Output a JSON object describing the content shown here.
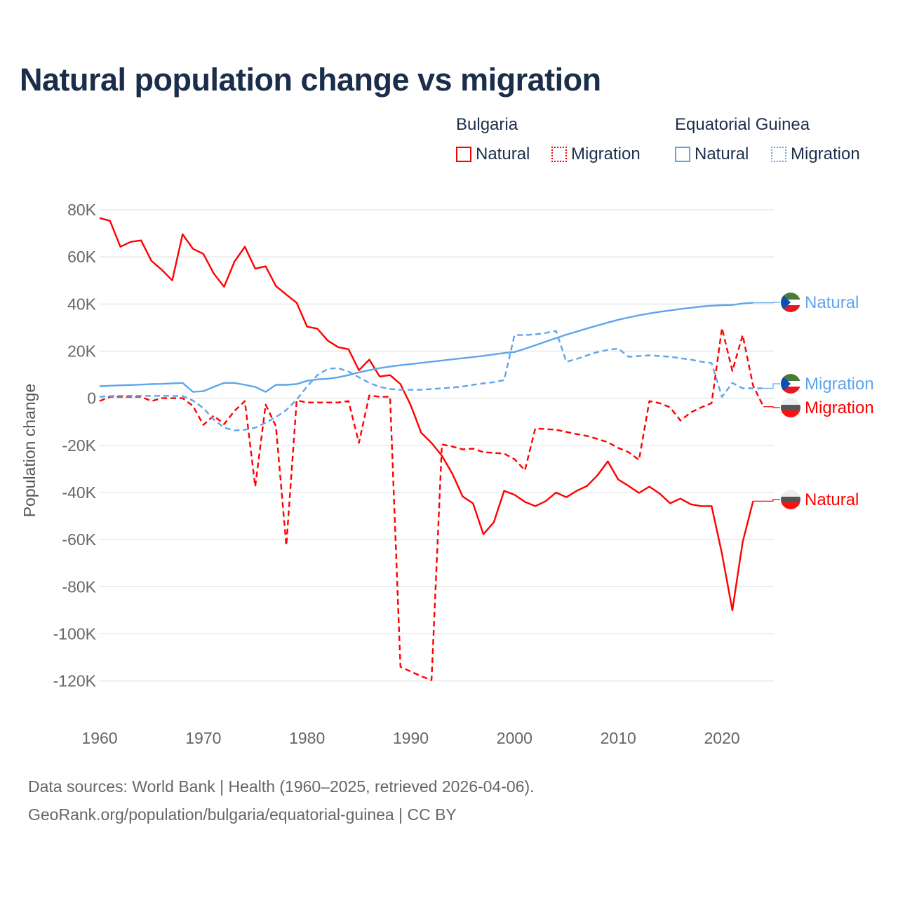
{
  "title": "Natural population change vs migration",
  "legend": {
    "groups": [
      {
        "name": "Bulgaria",
        "color": "#ff0000",
        "items": [
          "Natural",
          "Migration"
        ]
      },
      {
        "name": "Equatorial Guinea",
        "color": "#5ea5ec",
        "items": [
          "Natural",
          "Migration"
        ]
      }
    ]
  },
  "footer": {
    "line1": "Data sources: World Bank | Health (1960–2025, retrieved 2026-04-06).",
    "line2": "GeoRank.org/population/bulgaria/equatorial-guinea | CC BY"
  },
  "chart_data": {
    "type": "line",
    "title": "Natural population change vs migration",
    "xlabel": "",
    "ylabel": "Population change",
    "xlim": [
      1960,
      2025
    ],
    "ylim": [
      -120000,
      80000
    ],
    "xticks": [
      1960,
      1970,
      1980,
      1990,
      2000,
      2010,
      2020
    ],
    "xtick_labels": [
      "1960",
      "1970",
      "1980",
      "1990",
      "2000",
      "2010",
      "2020"
    ],
    "yticks": [
      80000,
      60000,
      40000,
      20000,
      0,
      -20000,
      -40000,
      -60000,
      -80000,
      -100000,
      -120000
    ],
    "ytick_labels": [
      "80K",
      "60K",
      "40K",
      "20K",
      "0",
      "-20K",
      "-40K",
      "-60K",
      "-80K",
      "-100K",
      "-120K"
    ],
    "grid": true,
    "legend_position": "top-right",
    "x_start": 1960,
    "series": [
      {
        "name": "Bulgaria Natural",
        "label": "Natural",
        "country": "Bulgaria",
        "color": "#ff0000",
        "dashed": false,
        "values": [
          76.5,
          75.3,
          64.3,
          66.4,
          67,
          58.3,
          54.5,
          50,
          69.6,
          63.4,
          61.3,
          53,
          47.3,
          58,
          64.3,
          55,
          56,
          47.6,
          44,
          40.5,
          30.4,
          29.5,
          24.4,
          21.7,
          20.8,
          11.9,
          16.4,
          9.2,
          9.8,
          6,
          -3,
          -14.6,
          -19,
          -24.4,
          -32,
          -41.7,
          -44.6,
          -57.7,
          -52.7,
          -39.3,
          -41,
          -44,
          -45.8,
          -43.7,
          -40,
          -42,
          -39.3,
          -37.2,
          -32.7,
          -26.8,
          -34.5,
          -37.2,
          -40.2,
          -37.5,
          -40.5,
          -44.6,
          -42.6,
          -45,
          -45.8,
          -45.8,
          -66,
          -90,
          -61,
          -43.7
        ]
      },
      {
        "name": "Bulgaria Migration",
        "label": "Migration",
        "country": "Bulgaria",
        "color": "#ff0000",
        "dashed": true,
        "values": [
          -1.2,
          0.6,
          0.6,
          0.6,
          0.6,
          -1.2,
          0,
          0,
          0,
          -3.3,
          -11.3,
          -7.4,
          -11,
          -5.4,
          -1.2,
          -37.5,
          -2.7,
          -11.9,
          -62.5,
          -0.9,
          -1.8,
          -1.8,
          -1.8,
          -1.8,
          -1.2,
          -19,
          1.2,
          0.6,
          0.6,
          -114,
          -116,
          -118,
          -119.6,
          -19.6,
          -20.5,
          -21.7,
          -21.4,
          -22.9,
          -23.2,
          -23.5,
          -25.9,
          -30.6,
          -12.8,
          -13.1,
          -13.4,
          -14.3,
          -15.2,
          -16,
          -17.3,
          -18.7,
          -21.1,
          -22.9,
          -26.2,
          -1.2,
          -2.1,
          -3.9,
          -9.5,
          -6,
          -3.9,
          -2.1,
          29.8,
          11.6,
          26.8,
          5.4,
          -3.6
        ]
      },
      {
        "name": "Equatorial Guinea Natural",
        "label": "Natural",
        "country": "Equatorial Guinea",
        "color": "#5ea5ec",
        "dashed": false,
        "values": [
          5.1,
          5.3,
          5.5,
          5.6,
          5.8,
          6,
          6.1,
          6.3,
          6.5,
          2.7,
          3,
          4.8,
          6.5,
          6.5,
          5.7,
          4.8,
          2.7,
          5.7,
          5.7,
          6,
          7.4,
          8,
          8.3,
          8.9,
          9.8,
          11,
          11.9,
          12.8,
          13.4,
          14,
          14.5,
          15,
          15.5,
          16,
          16.5,
          17,
          17.5,
          18,
          18.6,
          19.2,
          19.6,
          21,
          22.5,
          24,
          25.5,
          27,
          28.3,
          29.6,
          30.9,
          32.1,
          33.3,
          34.3,
          35.2,
          36,
          36.7,
          37.3,
          37.9,
          38.4,
          38.9,
          39.3,
          39.5,
          39.6,
          40.2,
          40.5
        ]
      },
      {
        "name": "Equatorial Guinea Migration",
        "label": "Migration",
        "country": "Equatorial Guinea",
        "color": "#5ea5ec",
        "dashed": true,
        "values": [
          0.6,
          0.9,
          1,
          1,
          1,
          1,
          1,
          1,
          0.9,
          -1,
          -4.2,
          -9,
          -12.5,
          -13.7,
          -13.4,
          -12.5,
          -10.4,
          -8,
          -5,
          -0.6,
          5,
          9.8,
          12.5,
          12.8,
          11.3,
          8.9,
          6.5,
          4.8,
          3.9,
          3.6,
          3.6,
          3.6,
          3.9,
          4.2,
          4.5,
          5,
          5.7,
          6.3,
          6.8,
          7.7,
          26.8,
          26.8,
          27.1,
          27.7,
          28.6,
          15.5,
          16.7,
          18.2,
          19.6,
          20.5,
          21.1,
          17.6,
          17.9,
          18.2,
          17.9,
          17.6,
          17,
          16.4,
          15.5,
          14.9,
          0.6,
          6.5,
          4.2,
          4.2,
          4.2
        ]
      }
    ],
    "units": "thousands"
  }
}
